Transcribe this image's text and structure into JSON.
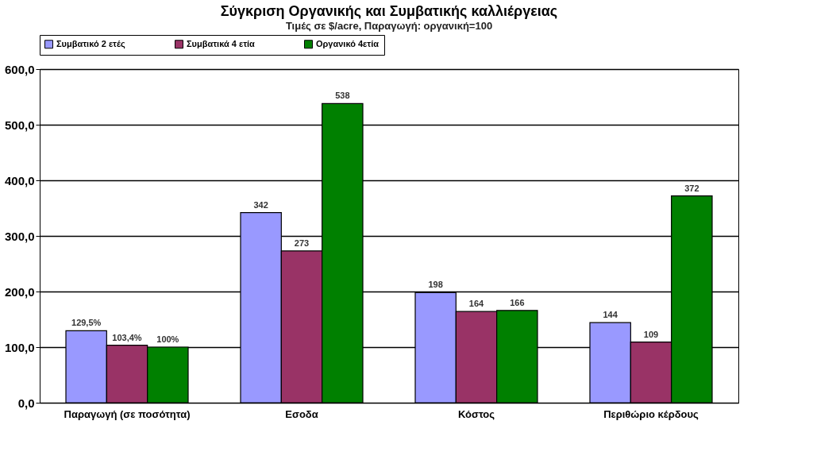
{
  "chart_data": {
    "type": "bar",
    "title": "Σύγκριση Οργανικής και Συμβατικής καλλιέργειας",
    "subtitle": "Τιμές σε $/acre, Παραγωγή: οργανική=100",
    "categories": [
      "Παραγωγή (σε ποσότητα)",
      "Εσοδα",
      "Κόστος",
      "Περιθώριο κέρδους"
    ],
    "series": [
      {
        "name": "Συμβατικό 2 ετές",
        "color": "#9999ff",
        "values": [
          129.5,
          342,
          198,
          144
        ],
        "value_labels": [
          "129,5%",
          "342",
          "198",
          "144"
        ]
      },
      {
        "name": "Συμβατικά 4 ετία",
        "color": "#993366",
        "values": [
          103.4,
          273,
          164,
          109
        ],
        "value_labels": [
          "103,4%",
          "273",
          "164",
          "109"
        ]
      },
      {
        "name": "Οργανικό 4ετία",
        "color": "#008000",
        "values": [
          100,
          538,
          166,
          372
        ],
        "value_labels": [
          "100%",
          "538",
          "166",
          "372"
        ]
      }
    ],
    "ylim": [
      0,
      600
    ],
    "yticks": [
      {
        "value": 0,
        "label": "0,0"
      },
      {
        "value": 100,
        "label": "100,0"
      },
      {
        "value": 200,
        "label": "200,0"
      },
      {
        "value": 300,
        "label": "300,0"
      },
      {
        "value": 400,
        "label": "400,0"
      },
      {
        "value": 500,
        "label": "500,0"
      },
      {
        "value": 600,
        "label": "600,0"
      }
    ],
    "grid": "y",
    "legend": "top"
  }
}
